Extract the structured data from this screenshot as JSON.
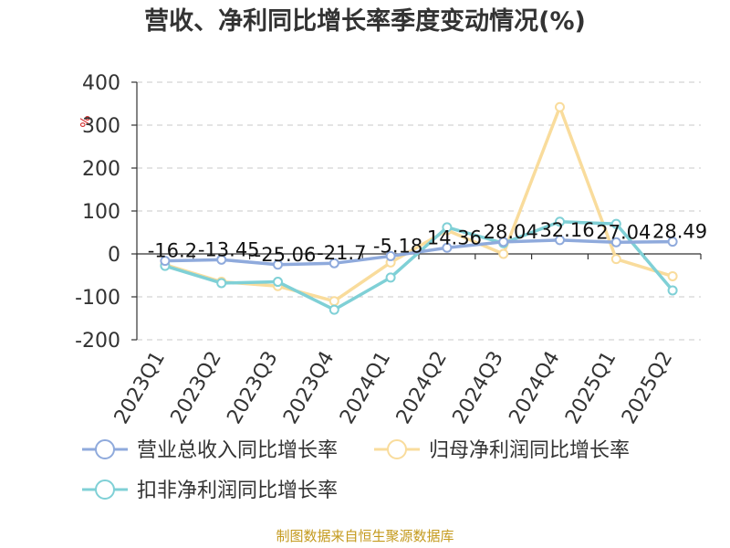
{
  "chart_data": {
    "type": "line",
    "title": "营收、净利同比增长率季度变动情况(%)",
    "ylabel": "%",
    "xlabel": "",
    "ylim": [
      -200,
      400
    ],
    "yticks": [
      400,
      300,
      200,
      100,
      0,
      -100,
      -200
    ],
    "categories": [
      "2023Q1",
      "2023Q2",
      "2023Q3",
      "2023Q4",
      "2024Q1",
      "2024Q2",
      "2024Q3",
      "2024Q4",
      "2025Q1",
      "2025Q2"
    ],
    "series": [
      {
        "name": "营业总收入同比增长率",
        "color": "#8faadc",
        "values": [
          -16.2,
          -13.45,
          -25.06,
          -21.7,
          -5.18,
          14.36,
          28.04,
          32.16,
          27.04,
          28.49
        ],
        "labels": [
          "-16.2",
          "-13.45",
          "-25.06",
          "-21.7",
          "-5.18",
          "14.36",
          "28.04",
          "32.16",
          "27.04",
          "28.49"
        ]
      },
      {
        "name": "归母净利润同比增长率",
        "color": "#f9dc9c",
        "values": [
          -25,
          -65,
          -75,
          -110,
          -20,
          55,
          0,
          342,
          -12,
          -52
        ]
      },
      {
        "name": "扣非净利润同比增长率",
        "color": "#7fd0d6",
        "values": [
          -28,
          -68,
          -65,
          -130,
          -55,
          62,
          25,
          75,
          70,
          -85
        ]
      }
    ],
    "grid": true,
    "legend_position": "bottom"
  },
  "source_note": "制图数据来自恒生聚源数据库"
}
